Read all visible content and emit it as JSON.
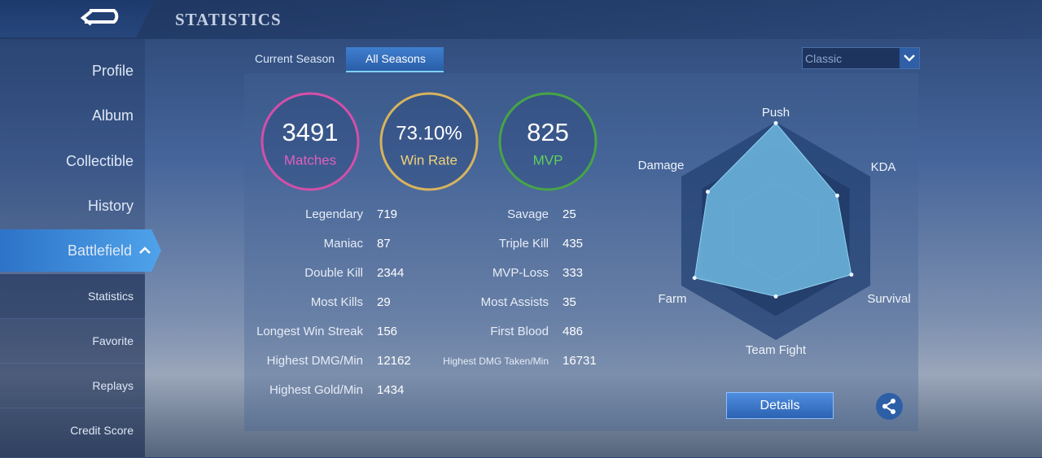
{
  "header": {
    "title": "STATISTICS"
  },
  "sidebar": {
    "items": [
      "Profile",
      "Album",
      "Collectible",
      "History",
      "Battlefield"
    ],
    "subitems": [
      "Statistics",
      "Favorite",
      "Replays",
      "Credit Score"
    ]
  },
  "tabs": [
    "Current Season",
    "All Seasons"
  ],
  "mode_select": "Classic",
  "summary": [
    {
      "value": "3491",
      "label": "Matches"
    },
    {
      "value": "73.10%",
      "label": "Win Rate"
    },
    {
      "value": "825",
      "label": "MVP"
    }
  ],
  "stats": {
    "left": [
      {
        "label": "Legendary",
        "value": "719"
      },
      {
        "label": "Maniac",
        "value": "87"
      },
      {
        "label": "Double Kill",
        "value": "2344"
      },
      {
        "label": "Most Kills",
        "value": "29"
      },
      {
        "label": "Longest Win Streak",
        "value": "156"
      },
      {
        "label": "Highest DMG/Min",
        "value": "12162"
      },
      {
        "label": "Highest Gold/Min",
        "value": "1434"
      }
    ],
    "right": [
      {
        "label": "Savage",
        "value": "25"
      },
      {
        "label": "Triple Kill",
        "value": "435"
      },
      {
        "label": "MVP-Loss",
        "value": "333"
      },
      {
        "label": "Most Assists",
        "value": "35"
      },
      {
        "label": "First Blood",
        "value": "486"
      },
      {
        "label": "Highest DMG Taken/Min",
        "value": "16731"
      }
    ]
  },
  "radar": {
    "axes": [
      "Push",
      "KDA",
      "Survival",
      "Team Fight",
      "Farm",
      "Damage"
    ],
    "values": [
      99,
      65,
      80,
      60,
      86,
      72
    ],
    "rlim": [
      0,
      100
    ]
  },
  "button": "Details"
}
